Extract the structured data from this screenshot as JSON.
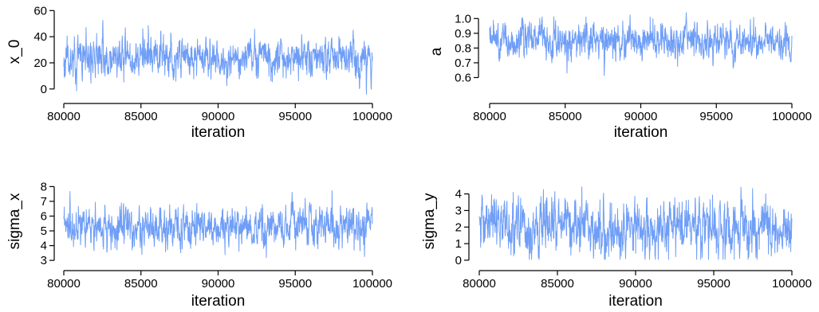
{
  "chart_data": [
    {
      "type": "line",
      "xlabel": "iteration",
      "ylabel": "x_0",
      "xlim": [
        80000,
        100000
      ],
      "ylim": [
        -5,
        62
      ],
      "xticks": [
        80000,
        85000,
        90000,
        95000,
        100000
      ],
      "yticks": [
        0,
        20,
        40,
        60
      ],
      "trace": {
        "start": 80000,
        "end": 100000,
        "mean": 24,
        "sd": 7.5,
        "min": -4,
        "max": 60,
        "seed": 11
      },
      "series": [
        {
          "color": "#6f9ef7"
        }
      ]
    },
    {
      "type": "line",
      "xlabel": "iteration",
      "ylabel": "a",
      "xlim": [
        80000,
        100000
      ],
      "ylim": [
        0.5,
        1.05
      ],
      "xticks": [
        80000,
        85000,
        90000,
        95000,
        100000
      ],
      "yticks": [
        0.6,
        0.7,
        0.8,
        0.9,
        1.0
      ],
      "ytick_labels": [
        "0.6",
        "0.7",
        "0.8",
        "0.9",
        "1.0"
      ],
      "trace": {
        "start": 80000,
        "end": 100000,
        "mean": 0.84,
        "sd": 0.06,
        "min": 0.53,
        "max": 1.04,
        "seed": 23
      },
      "series": [
        {
          "color": "#6f9ef7"
        }
      ]
    },
    {
      "type": "line",
      "xlabel": "iteration",
      "ylabel": "sigma_x",
      "xlim": [
        80000,
        100000
      ],
      "ylim": [
        2.9,
        8.4
      ],
      "xticks": [
        80000,
        85000,
        90000,
        95000,
        100000
      ],
      "yticks": [
        3,
        4,
        5,
        6,
        7,
        8
      ],
      "trace": {
        "start": 80000,
        "end": 100000,
        "mean": 5.3,
        "sd": 0.7,
        "min": 3.1,
        "max": 8.3,
        "seed": 37
      },
      "series": [
        {
          "color": "#6f9ef7"
        }
      ]
    },
    {
      "type": "line",
      "xlabel": "iteration",
      "ylabel": "sigma_y",
      "xlim": [
        80000,
        100000
      ],
      "ylim": [
        -0.1,
        4.8
      ],
      "xticks": [
        80000,
        85000,
        90000,
        95000,
        100000
      ],
      "yticks": [
        0,
        1,
        2,
        3,
        4
      ],
      "trace": {
        "start": 80000,
        "end": 100000,
        "mean": 1.95,
        "sd": 0.85,
        "min": 0.05,
        "max": 4.7,
        "seed": 53
      },
      "series": [
        {
          "color": "#6f9ef7"
        }
      ]
    }
  ]
}
